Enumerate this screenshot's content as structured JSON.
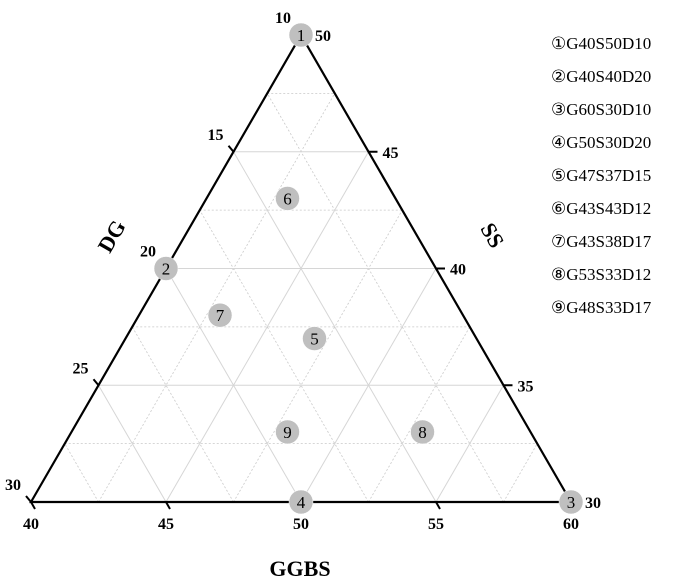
{
  "axes": {
    "bottom": {
      "title": "GGBS",
      "ticks": [
        "40",
        "45",
        "50",
        "55",
        "60"
      ]
    },
    "left": {
      "title": "DG",
      "ticks": [
        "30",
        "25",
        "20",
        "15",
        "10"
      ]
    },
    "right": {
      "title": "SS",
      "ticks": [
        "30",
        "35",
        "40",
        "45",
        "50"
      ]
    }
  },
  "points": [
    {
      "id": "1",
      "ggbs": 40,
      "ss": 50,
      "dg": 10
    },
    {
      "id": "2",
      "ggbs": 40,
      "ss": 40,
      "dg": 20
    },
    {
      "id": "3",
      "ggbs": 60,
      "ss": 30,
      "dg": 10
    },
    {
      "id": "4",
      "ggbs": 50,
      "ss": 30,
      "dg": 20
    },
    {
      "id": "5",
      "ggbs": 47,
      "ss": 37,
      "dg": 15
    },
    {
      "id": "6",
      "ggbs": 43,
      "ss": 43,
      "dg": 12
    },
    {
      "id": "7",
      "ggbs": 43,
      "ss": 38,
      "dg": 17
    },
    {
      "id": "8",
      "ggbs": 53,
      "ss": 33,
      "dg": 12
    },
    {
      "id": "9",
      "ggbs": 48,
      "ss": 33,
      "dg": 17
    }
  ],
  "legend": [
    "①G40S50D10",
    "②G40S40D20",
    "③G60S30D10",
    "④G50S30D20",
    "⑤G47S37D15",
    "⑥G43S43D12",
    "⑦G43S38D17",
    "⑧G53S33D12",
    "⑨G48S33D17"
  ],
  "colors": {
    "point_fill": "#bfbfbf",
    "frame": "#000000",
    "grid": "#c8c8c8"
  }
}
